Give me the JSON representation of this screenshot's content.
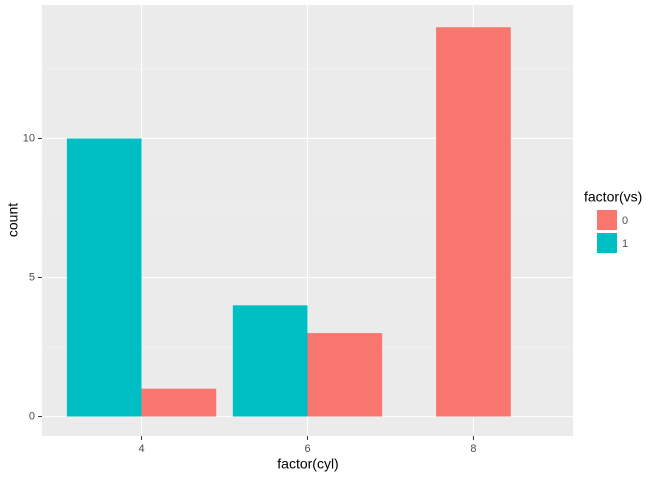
{
  "chart_data": {
    "type": "bar",
    "categories": [
      "4",
      "6",
      "8"
    ],
    "series": [
      {
        "name": "0",
        "color": "#f8766d",
        "values": [
          1,
          3,
          14
        ]
      },
      {
        "name": "1",
        "color": "#00bfc4",
        "values": [
          10,
          4,
          null
        ]
      }
    ],
    "x_label": "factor(cyl)",
    "y_label": "count",
    "legend_title": "factor(vs)",
    "ylim": [
      -0.7,
      14.8
    ],
    "yticks": [
      0,
      5,
      10
    ],
    "grid": true,
    "legend_position": "right"
  }
}
